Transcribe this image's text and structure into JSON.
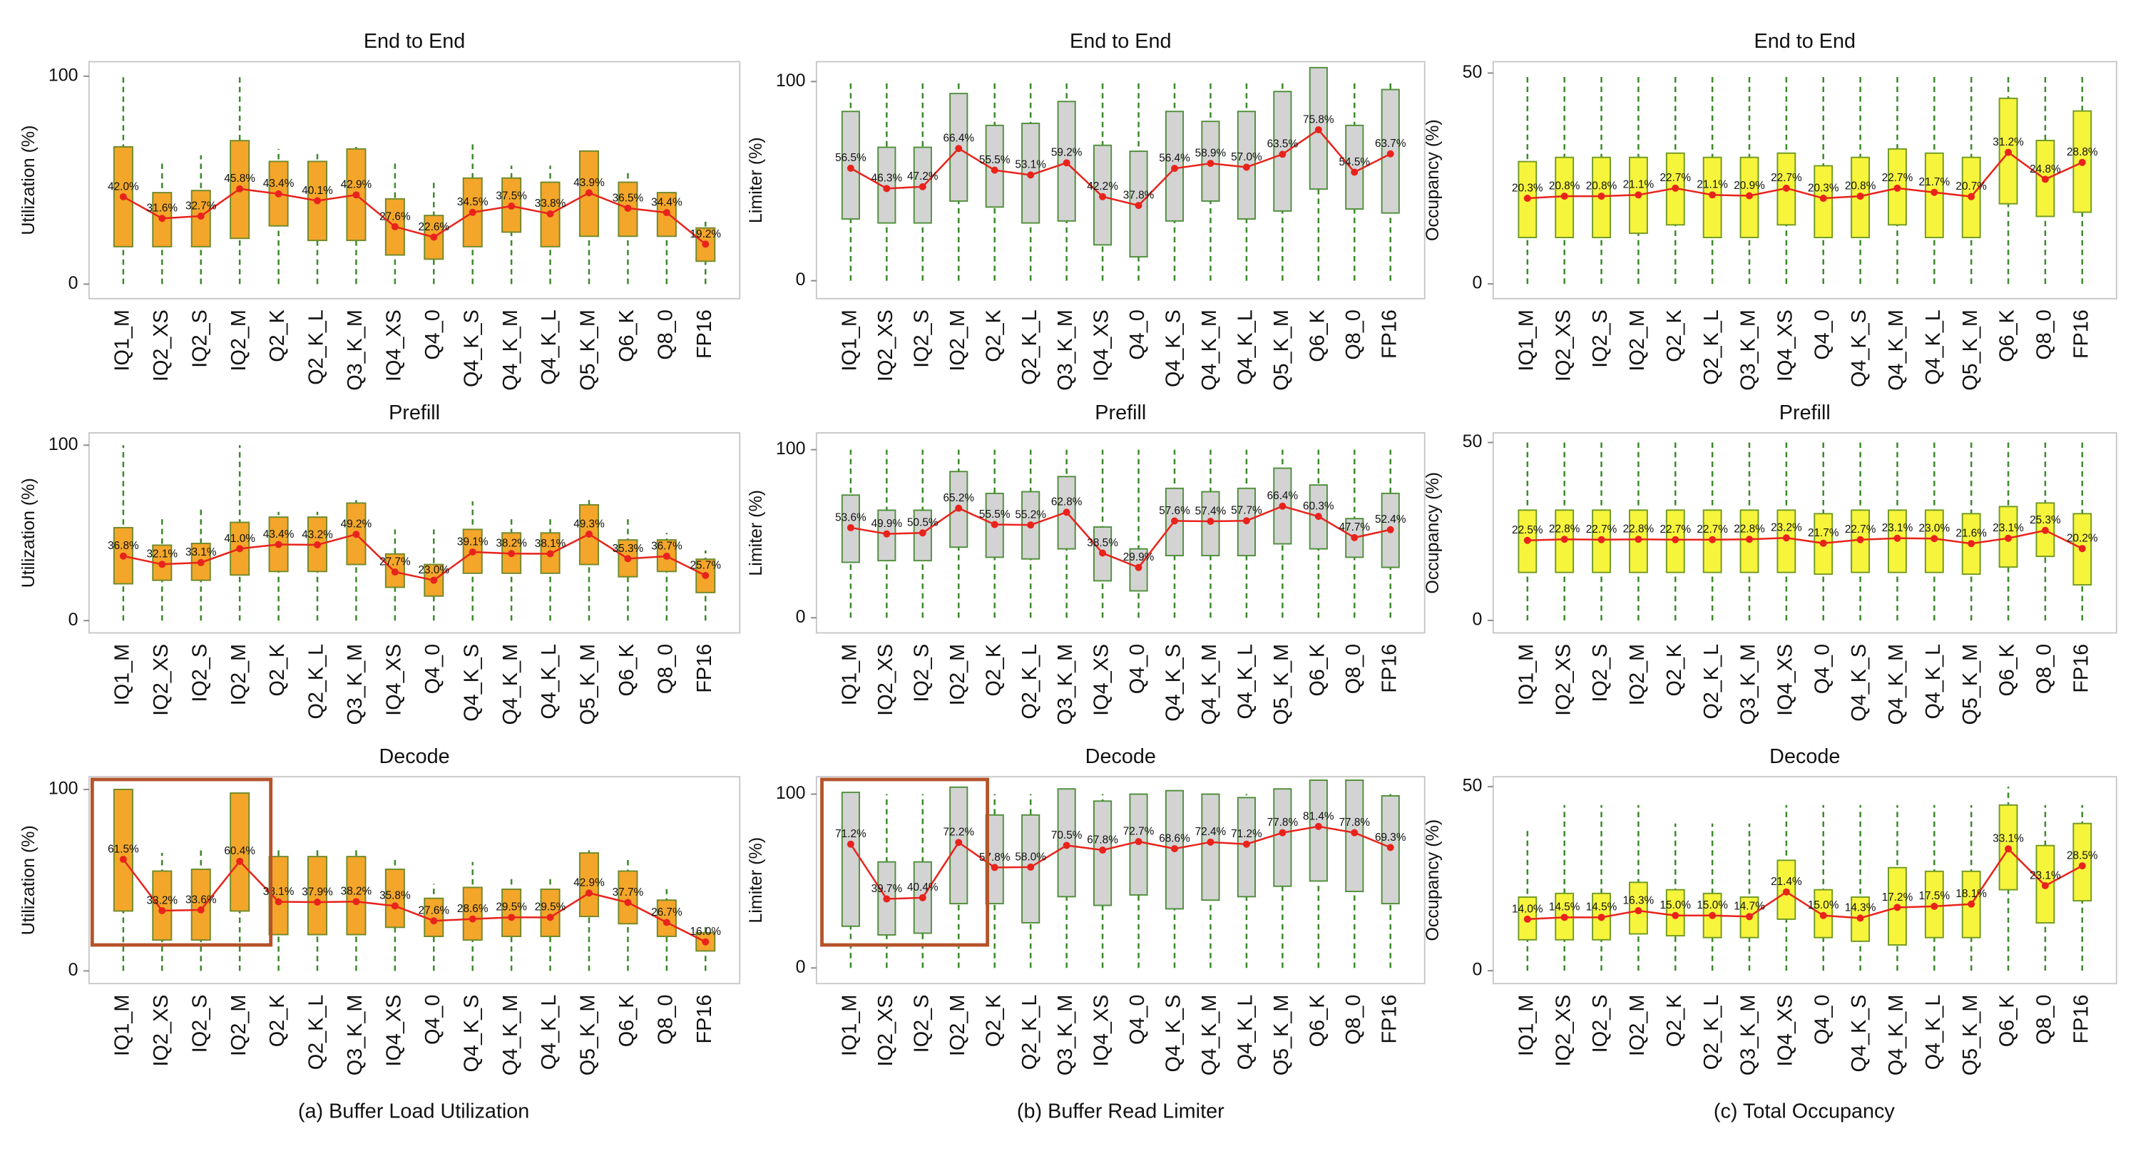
{
  "chart_data": [
    {
      "type": "box",
      "title": "End to End",
      "ylabel": "Utilization (%)",
      "ylim": [
        -7,
        107
      ],
      "yticks": [
        0,
        100
      ],
      "color": "#f4a62a",
      "edge_color": "#6f8a2a",
      "whisker_color": "#3a8a2a",
      "line_color": "#e8231c",
      "categories": [
        "IQ1_M",
        "IQ2_XS",
        "IQ2_S",
        "IQ2_M",
        "Q2_K",
        "Q2_K_L",
        "Q3_K_M",
        "IQ4_XS",
        "Q4_0",
        "Q4_K_S",
        "Q4_K_M",
        "Q4_K_L",
        "Q5_K_M",
        "Q6_K",
        "Q8_0",
        "FP16"
      ],
      "values": [
        42.0,
        31.6,
        32.7,
        45.8,
        43.4,
        40.1,
        42.9,
        27.6,
        22.6,
        34.5,
        37.5,
        33.8,
        43.9,
        36.5,
        34.4,
        19.2
      ],
      "value_labels": [
        "42.0%",
        "31.6%",
        "32.7%",
        "45.8%",
        "43.4%",
        "40.1%",
        "42.9%",
        "27.6%",
        "22.6%",
        "34.5%",
        "37.5%",
        "33.8%",
        "43.9%",
        "36.5%",
        "34.4%",
        "19.2%"
      ],
      "q1": [
        18,
        18,
        18,
        22,
        28,
        21,
        21,
        14,
        12,
        18,
        25,
        18,
        23,
        23,
        23,
        11
      ],
      "q3": [
        66,
        44,
        45,
        69,
        59,
        59,
        65,
        41,
        33,
        51,
        51,
        49,
        64,
        49,
        44,
        27
      ],
      "whisker_low": [
        0,
        0,
        0,
        0,
        0,
        0,
        0,
        0,
        0,
        0,
        0,
        0,
        0,
        0,
        0,
        0
      ],
      "whisker_high": [
        100,
        58,
        62,
        100,
        65,
        63,
        66,
        60,
        50,
        68,
        57,
        57,
        62,
        55,
        46,
        30
      ]
    },
    {
      "type": "box",
      "title": "Prefill",
      "ylabel": "Utilization (%)",
      "ylim": [
        -7,
        107
      ],
      "yticks": [
        0,
        100
      ],
      "color": "#f4a62a",
      "edge_color": "#6f8a2a",
      "whisker_color": "#3a8a2a",
      "line_color": "#e8231c",
      "categories": [
        "IQ1_M",
        "IQ2_XS",
        "IQ2_S",
        "IQ2_M",
        "Q2_K",
        "Q2_K_L",
        "Q3_K_M",
        "IQ4_XS",
        "Q4_0",
        "Q4_K_S",
        "Q4_K_M",
        "Q4_K_L",
        "Q5_K_M",
        "Q6_K",
        "Q8_0",
        "FP16"
      ],
      "values": [
        36.8,
        32.1,
        33.1,
        41.0,
        43.4,
        43.2,
        49.2,
        27.7,
        23.0,
        39.1,
        38.2,
        38.1,
        49.3,
        35.3,
        36.7,
        25.7
      ],
      "value_labels": [
        "36.8%",
        "32.1%",
        "33.1%",
        "41.0%",
        "43.4%",
        "43.2%",
        "49.2%",
        "27.7%",
        "23.0%",
        "39.1%",
        "38.2%",
        "38.1%",
        "49.3%",
        "35.3%",
        "36.7%",
        "25.7%"
      ],
      "q1": [
        21,
        23,
        23,
        26,
        28,
        28,
        32,
        19,
        14,
        27,
        27,
        27,
        32,
        25,
        28,
        16
      ],
      "q3": [
        53,
        43,
        44,
        56,
        59,
        59,
        67,
        38,
        32,
        52,
        50,
        50,
        66,
        46,
        46,
        35
      ],
      "whisker_low": [
        0,
        0,
        0,
        0,
        0,
        0,
        0,
        0,
        0,
        0,
        0,
        0,
        0,
        0,
        0,
        0
      ],
      "whisker_high": [
        100,
        60,
        65,
        100,
        62,
        62,
        70,
        52,
        52,
        68,
        58,
        60,
        70,
        58,
        50,
        40
      ]
    },
    {
      "type": "box",
      "title": "Decode",
      "ylabel": "Utilization (%)",
      "ylim": [
        -7,
        107
      ],
      "yticks": [
        0,
        100
      ],
      "color": "#f4a62a",
      "edge_color": "#6f8a2a",
      "whisker_color": "#3a8a2a",
      "line_color": "#e8231c",
      "categories": [
        "IQ1_M",
        "IQ2_XS",
        "IQ2_S",
        "IQ2_M",
        "Q2_K",
        "Q2_K_L",
        "Q3_K_M",
        "IQ4_XS",
        "Q4_0",
        "Q4_K_S",
        "Q4_K_M",
        "Q4_K_L",
        "Q5_K_M",
        "Q6_K",
        "Q8_0",
        "FP16"
      ],
      "values": [
        61.5,
        33.2,
        33.6,
        60.4,
        38.1,
        37.9,
        38.2,
        35.8,
        27.6,
        28.6,
        29.5,
        29.5,
        42.9,
        37.7,
        26.7,
        16.0
      ],
      "value_labels": [
        "61.5%",
        "33.2%",
        "33.6%",
        "60.4%",
        "38.1%",
        "37.9%",
        "38.2%",
        "35.8%",
        "27.6%",
        "28.6%",
        "29.5%",
        "29.5%",
        "42.9%",
        "37.7%",
        "26.7%",
        "16.0%"
      ],
      "q1": [
        33,
        17,
        17,
        33,
        20,
        20,
        20,
        24,
        19,
        17,
        19,
        19,
        30,
        26,
        19,
        11
      ],
      "q3": [
        100,
        55,
        56,
        98,
        63,
        63,
        63,
        56,
        40,
        46,
        45,
        45,
        65,
        55,
        39,
        21
      ],
      "whisker_low": [
        0,
        0,
        0,
        0,
        0,
        0,
        0,
        0,
        0,
        0,
        0,
        0,
        0,
        0,
        0,
        0
      ],
      "whisker_high": [
        100,
        65,
        68,
        100,
        68,
        68,
        68,
        62,
        48,
        60,
        52,
        52,
        68,
        62,
        45,
        25
      ]
    },
    {
      "type": "box",
      "title": "End to End",
      "ylabel": "Limiter (%)",
      "ylim": [
        -9,
        110
      ],
      "yticks": [
        0,
        100
      ],
      "color": "#d3d3d3",
      "edge_color": "#4f8f3a",
      "whisker_color": "#3a8a2a",
      "line_color": "#e8231c",
      "categories": [
        "IQ1_M",
        "IQ2_XS",
        "IQ2_S",
        "IQ2_M",
        "Q2_K",
        "Q2_K_L",
        "Q3_K_M",
        "IQ4_XS",
        "Q4_0",
        "Q4_K_S",
        "Q4_K_M",
        "Q4_K_L",
        "Q5_K_M",
        "Q6_K",
        "Q8_0",
        "FP16"
      ],
      "values": [
        56.5,
        46.3,
        47.2,
        66.4,
        55.5,
        53.1,
        59.2,
        42.2,
        37.8,
        56.4,
        58.9,
        57.0,
        63.5,
        75.8,
        54.5,
        63.7
      ],
      "value_labels": [
        "56.5%",
        "46.3%",
        "47.2%",
        "66.4%",
        "55.5%",
        "53.1%",
        "59.2%",
        "42.2%",
        "37.8%",
        "56.4%",
        "58.9%",
        "57.0%",
        "63.5%",
        "75.8%",
        "54.5%",
        "63.7%"
      ],
      "q1": [
        31,
        29,
        29,
        40,
        37,
        29,
        30,
        18,
        12,
        30,
        40,
        31,
        35,
        46,
        36,
        34
      ],
      "q3": [
        85,
        67,
        67,
        94,
        78,
        79,
        90,
        68,
        65,
        85,
        80,
        85,
        95,
        107,
        78,
        96
      ],
      "whisker_low": [
        0,
        0,
        0,
        0,
        0,
        0,
        0,
        0,
        0,
        0,
        0,
        0,
        0,
        0,
        0,
        0
      ],
      "whisker_high": [
        100,
        100,
        100,
        100,
        100,
        100,
        100,
        100,
        100,
        100,
        100,
        100,
        100,
        100,
        100,
        100
      ]
    },
    {
      "type": "box",
      "title": "Prefill",
      "ylabel": "Limiter (%)",
      "ylim": [
        -9,
        110
      ],
      "yticks": [
        0,
        100
      ],
      "color": "#d3d3d3",
      "edge_color": "#4f8f3a",
      "whisker_color": "#3a8a2a",
      "line_color": "#e8231c",
      "categories": [
        "IQ1_M",
        "IQ2_XS",
        "IQ2_S",
        "IQ2_M",
        "Q2_K",
        "Q2_K_L",
        "Q3_K_M",
        "IQ4_XS",
        "Q4_0",
        "Q4_K_S",
        "Q4_K_M",
        "Q4_K_L",
        "Q5_K_M",
        "Q6_K",
        "Q8_0",
        "FP16"
      ],
      "values": [
        53.6,
        49.9,
        50.5,
        65.2,
        55.5,
        55.2,
        62.8,
        38.5,
        29.9,
        57.6,
        57.4,
        57.7,
        66.4,
        60.3,
        47.7,
        52.4
      ],
      "value_labels": [
        "53.6%",
        "49.9%",
        "50.5%",
        "65.2%",
        "55.5%",
        "55.2%",
        "62.8%",
        "38.5%",
        "29.9%",
        "57.6%",
        "57.4%",
        "57.7%",
        "66.4%",
        "60.3%",
        "47.7%",
        "52.4%"
      ],
      "q1": [
        33,
        34,
        34,
        42,
        36,
        35,
        41,
        22,
        16,
        37,
        37,
        37,
        44,
        41,
        36,
        30
      ],
      "q3": [
        73,
        64,
        64,
        87,
        74,
        75,
        84,
        54,
        41,
        77,
        75,
        77,
        89,
        79,
        59,
        74
      ],
      "whisker_low": [
        0,
        0,
        0,
        0,
        0,
        0,
        0,
        0,
        0,
        0,
        0,
        0,
        0,
        0,
        0,
        0
      ],
      "whisker_high": [
        100,
        100,
        100,
        100,
        100,
        100,
        100,
        100,
        100,
        100,
        100,
        100,
        100,
        100,
        100,
        100
      ]
    },
    {
      "type": "box",
      "title": "Decode",
      "ylabel": "Limiter (%)",
      "ylim": [
        -9,
        110
      ],
      "yticks": [
        0,
        100
      ],
      "color": "#d3d3d3",
      "edge_color": "#4f8f3a",
      "whisker_color": "#3a8a2a",
      "line_color": "#e8231c",
      "categories": [
        "IQ1_M",
        "IQ2_XS",
        "IQ2_S",
        "IQ2_M",
        "Q2_K",
        "Q2_K_L",
        "Q3_K_M",
        "IQ4_XS",
        "Q4_0",
        "Q4_K_S",
        "Q4_K_M",
        "Q4_K_L",
        "Q5_K_M",
        "Q6_K",
        "Q8_0",
        "FP16"
      ],
      "values": [
        71.2,
        39.7,
        40.4,
        72.2,
        57.8,
        58.0,
        70.5,
        67.8,
        72.7,
        68.6,
        72.4,
        71.2,
        77.8,
        81.4,
        77.8,
        69.3
      ],
      "value_labels": [
        "71.2%",
        "39.7%",
        "40.4%",
        "72.2%",
        "57.8%",
        "58.0%",
        "70.5%",
        "67.8%",
        "72.7%",
        "68.6%",
        "72.4%",
        "71.2%",
        "77.8%",
        "81.4%",
        "77.8%",
        "69.3%"
      ],
      "q1": [
        24,
        19,
        20,
        37,
        37,
        26,
        41,
        36,
        42,
        34,
        39,
        41,
        47,
        50,
        44,
        37
      ],
      "q3": [
        101,
        61,
        61,
        104,
        88,
        88,
        103,
        96,
        100,
        102,
        100,
        98,
        103,
        108,
        108,
        99
      ],
      "whisker_low": [
        0,
        0,
        0,
        0,
        0,
        0,
        0,
        0,
        0,
        0,
        0,
        0,
        0,
        0,
        0,
        0
      ],
      "whisker_high": [
        100,
        100,
        100,
        104,
        100,
        100,
        103,
        100,
        100,
        102,
        100,
        100,
        103,
        108,
        108,
        100
      ]
    },
    {
      "type": "box",
      "title": "End to End",
      "ylabel": "Occupancy (%)",
      "ylim": [
        -3.5,
        52.7
      ],
      "yticks": [
        0,
        50
      ],
      "color": "#f7f43c",
      "edge_color": "#6f9a22",
      "whisker_color": "#3a8a2a",
      "line_color": "#e8231c",
      "categories": [
        "IQ1_M",
        "IQ2_XS",
        "IQ2_S",
        "IQ2_M",
        "Q2_K",
        "Q2_K_L",
        "Q3_K_M",
        "IQ4_XS",
        "Q4_0",
        "Q4_K_S",
        "Q4_K_M",
        "Q4_K_L",
        "Q5_K_M",
        "Q6_K",
        "Q8_0",
        "FP16"
      ],
      "values": [
        20.3,
        20.8,
        20.8,
        21.1,
        22.7,
        21.1,
        20.9,
        22.7,
        20.3,
        20.8,
        22.7,
        21.7,
        20.7,
        31.2,
        24.8,
        28.8
      ],
      "value_labels": [
        "20.3%",
        "20.8%",
        "20.8%",
        "21.1%",
        "22.7%",
        "21.1%",
        "20.9%",
        "22.7%",
        "20.3%",
        "20.8%",
        "22.7%",
        "21.7%",
        "20.7%",
        "31.2%",
        "24.8%",
        "28.8%"
      ],
      "q1": [
        11,
        11,
        11,
        12,
        14,
        11,
        11,
        14,
        11,
        11,
        14,
        11,
        11,
        19,
        16,
        17
      ],
      "q3": [
        29,
        30,
        30,
        30,
        31,
        30,
        30,
        31,
        28,
        30,
        32,
        31,
        30,
        44,
        34,
        41
      ],
      "whisker_low": [
        0,
        0,
        0,
        0,
        0,
        0,
        0,
        0,
        0,
        0,
        0,
        0,
        0,
        0,
        0,
        0
      ],
      "whisker_high": [
        50,
        50,
        50,
        50,
        50,
        50,
        50,
        50,
        50,
        50,
        50,
        50,
        50,
        50,
        50,
        50
      ]
    },
    {
      "type": "box",
      "title": "Prefill",
      "ylabel": "Occupancy (%)",
      "ylim": [
        -3.5,
        52.7
      ],
      "yticks": [
        0,
        50
      ],
      "color": "#f7f43c",
      "edge_color": "#6f9a22",
      "whisker_color": "#3a8a2a",
      "line_color": "#e8231c",
      "categories": [
        "IQ1_M",
        "IQ2_XS",
        "IQ2_S",
        "IQ2_M",
        "Q2_K",
        "Q2_K_L",
        "Q3_K_M",
        "IQ4_XS",
        "Q4_0",
        "Q4_K_S",
        "Q4_K_M",
        "Q4_K_L",
        "Q5_K_M",
        "Q6_K",
        "Q8_0",
        "FP16"
      ],
      "values": [
        22.5,
        22.8,
        22.7,
        22.8,
        22.7,
        22.7,
        22.8,
        23.2,
        21.7,
        22.7,
        23.1,
        23.0,
        21.6,
        23.1,
        25.3,
        20.2
      ],
      "value_labels": [
        "22.5%",
        "22.8%",
        "22.7%",
        "22.8%",
        "22.7%",
        "22.7%",
        "22.8%",
        "23.2%",
        "21.7%",
        "22.7%",
        "23.1%",
        "23.0%",
        "21.6%",
        "23.1%",
        "25.3%",
        "20.2%"
      ],
      "q1": [
        13.5,
        13.5,
        13.5,
        13.5,
        13.5,
        13.5,
        13.5,
        13.5,
        13,
        13.5,
        13.5,
        13.5,
        13,
        15,
        18,
        10
      ],
      "q3": [
        31,
        31,
        31,
        31,
        31,
        31,
        31,
        31,
        30,
        31,
        31,
        31,
        30,
        32,
        33,
        30
      ],
      "whisker_low": [
        0,
        0,
        0,
        0,
        0,
        0,
        0,
        0,
        0,
        0,
        0,
        0,
        0,
        0,
        0,
        0
      ],
      "whisker_high": [
        50,
        50,
        50,
        50,
        50,
        50,
        50,
        50,
        50,
        50,
        50,
        50,
        50,
        50,
        50,
        50
      ]
    },
    {
      "type": "box",
      "title": "Decode",
      "ylabel": "Occupancy (%)",
      "ylim": [
        -3.5,
        52.7
      ],
      "yticks": [
        0,
        50
      ],
      "color": "#f7f43c",
      "edge_color": "#6f9a22",
      "whisker_color": "#3a8a2a",
      "line_color": "#e8231c",
      "categories": [
        "IQ1_M",
        "IQ2_XS",
        "IQ2_S",
        "IQ2_M",
        "Q2_K",
        "Q2_K_L",
        "Q3_K_M",
        "IQ4_XS",
        "Q4_0",
        "Q4_K_S",
        "Q4_K_M",
        "Q4_K_L",
        "Q5_K_M",
        "Q6_K",
        "Q8_0",
        "FP16"
      ],
      "values": [
        14.0,
        14.5,
        14.5,
        16.3,
        15.0,
        15.0,
        14.7,
        21.4,
        15.0,
        14.3,
        17.2,
        17.5,
        18.1,
        33.1,
        23.1,
        28.5
      ],
      "value_labels": [
        "14.0%",
        "14.5%",
        "14.5%",
        "16.3%",
        "15.0%",
        "15.0%",
        "14.7%",
        "21.4%",
        "15.0%",
        "14.3%",
        "17.2%",
        "17.5%",
        "18.1%",
        "33.1%",
        "23.1%",
        "28.5%"
      ],
      "q1": [
        8.4,
        8.4,
        8.4,
        10,
        9.5,
        9,
        9,
        14,
        9,
        8,
        7,
        9,
        9,
        22,
        13,
        19
      ],
      "q3": [
        20,
        21,
        21,
        24,
        22,
        21,
        20,
        30,
        22,
        20,
        28,
        27,
        27,
        45,
        34,
        40
      ],
      "whisker_low": [
        0,
        0,
        0,
        0,
        0,
        0,
        0,
        0,
        0,
        0,
        0,
        0,
        0,
        0,
        0,
        0
      ],
      "whisker_high": [
        38,
        45,
        45,
        45,
        40,
        40,
        40,
        45,
        45,
        45,
        45,
        45,
        45,
        50,
        45,
        45
      ]
    }
  ],
  "captions": [
    "(a) Buffer Load Utilization",
    "(b) Buffer Read Limiter",
    "(c) Total Occupancy"
  ]
}
